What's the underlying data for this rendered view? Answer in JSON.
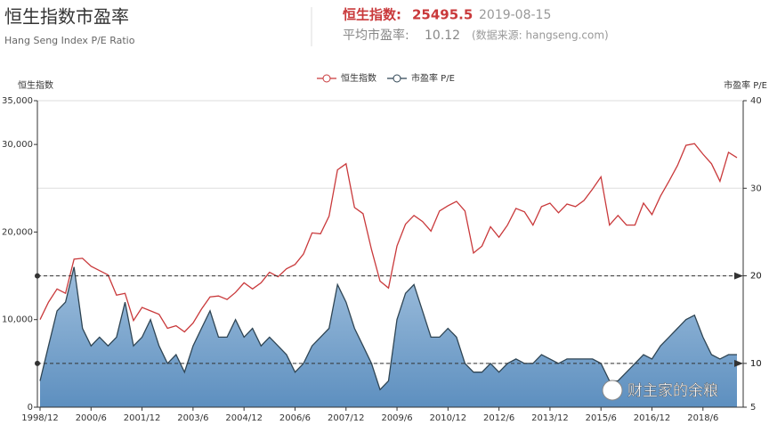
{
  "header": {
    "title": "恒生指数市盈率",
    "subtitle": "Hang Seng Index P/E Ratio",
    "index_label": "恒生指数:",
    "index_value": "25495.5",
    "date": "2019-08-15",
    "pe_label": "平均市盈率:",
    "pe_value": "10.12",
    "source": "(数据来源: hangseng.com)"
  },
  "watermark": "财主家的余粮",
  "chart_data": {
    "type": "line",
    "y_label": "恒生指数",
    "y2_label": "市盈率 P/E",
    "categories": [
      "1998/12",
      null,
      null,
      null,
      null,
      null,
      "2000/6",
      null,
      null,
      null,
      null,
      null,
      "2001/12",
      null,
      null,
      null,
      null,
      null,
      "2003/6",
      null,
      null,
      null,
      null,
      null,
      "2004/12",
      null,
      null,
      null,
      null,
      null,
      "2006/6",
      null,
      null,
      null,
      null,
      null,
      "2007/12",
      null,
      null,
      null,
      null,
      null,
      "2009/6",
      null,
      null,
      null,
      null,
      null,
      "2010/12",
      null,
      null,
      null,
      null,
      null,
      "2012/6",
      null,
      null,
      null,
      null,
      null,
      "2013/12",
      null,
      null,
      null,
      null,
      null,
      "2015/6",
      null,
      null,
      null,
      null,
      null,
      "2016/12",
      null,
      null,
      null,
      null,
      null,
      "2018/6",
      null,
      null,
      null,
      null
    ],
    "series": [
      {
        "name": "恒生指数",
        "color": "#c9393b",
        "values": [
          10000,
          12000,
          13500,
          13000,
          16900,
          17000,
          16100,
          15600,
          15100,
          12800,
          13000,
          9900,
          11400,
          11000,
          10600,
          9000,
          9300,
          8600,
          9600,
          11200,
          12600,
          12700,
          12300,
          13100,
          14200,
          13500,
          14200,
          15400,
          14900,
          15800,
          16300,
          17500,
          19900,
          19800,
          21800,
          27100,
          27800,
          22800,
          22100,
          18000,
          14400,
          13600,
          18400,
          20900,
          21900,
          21200,
          20100,
          22400,
          23000,
          23500,
          22400,
          17600,
          18400,
          20600,
          19400,
          20800,
          22700,
          22300,
          20800,
          22900,
          23300,
          22200,
          23200,
          22900,
          23600,
          24900,
          26300,
          20800,
          21900,
          20800,
          20800,
          23300,
          22000,
          24100,
          25800,
          27600,
          29900,
          30100,
          28900,
          27800,
          25800,
          29100,
          28500
        ]
      },
      {
        "name": "市盈率 P/E",
        "color": "#2f4554",
        "axis": "y2",
        "area": true,
        "values": [
          8,
          12,
          16,
          17,
          21,
          14,
          12,
          13,
          12,
          13,
          17,
          12,
          13,
          15,
          12,
          10,
          11,
          9,
          12,
          14,
          16,
          13,
          13,
          15,
          13,
          14,
          12,
          13,
          12,
          11,
          9,
          10,
          12,
          13,
          14,
          19,
          17,
          14,
          12,
          10,
          7,
          8,
          15,
          18,
          19,
          16,
          13,
          13,
          14,
          13,
          10,
          9,
          9,
          10,
          9,
          10,
          10.5,
          10,
          10,
          11,
          10.5,
          10,
          10.5,
          10.5,
          10.5,
          10.5,
          10,
          8,
          8,
          9,
          10,
          11,
          10.5,
          12,
          13,
          14,
          15,
          15.5,
          13,
          11,
          10.5,
          11,
          11
        ]
      }
    ],
    "ylim": [
      0,
      35000
    ],
    "yticks": [
      0,
      {
        "value": 10000,
        "label": "10,000"
      },
      {
        "value": 20000,
        "label": "20,000"
      },
      {
        "value": 30000,
        "label": "30,000"
      },
      {
        "value": 35000,
        "label": "35,000"
      }
    ],
    "y2lim": [
      5,
      40
    ],
    "y2ticks": [
      5,
      10,
      20,
      30,
      40
    ],
    "reference_lines": [
      20,
      10
    ],
    "grid": true,
    "legend": "top"
  }
}
